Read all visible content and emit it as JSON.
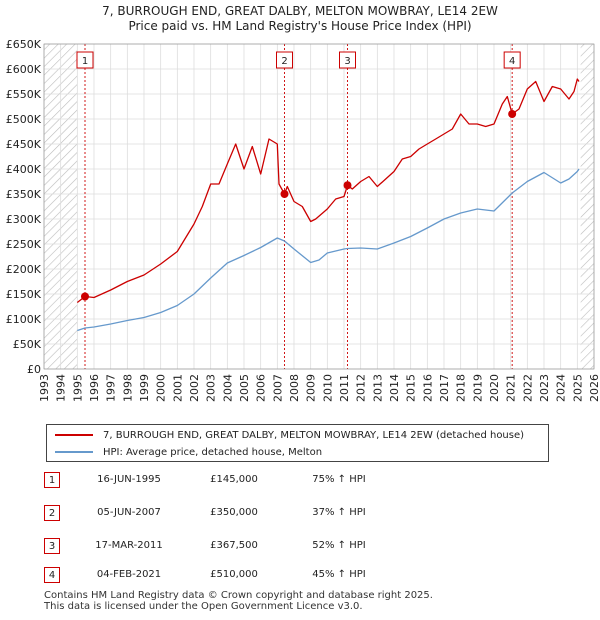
{
  "title_line1": "7, BURROUGH END, GREAT DALBY, MELTON MOWBRAY, LE14 2EW",
  "title_line2": "Price paid vs. HM Land Registry's House Price Index (HPI)",
  "colors": {
    "property": "#cc0000",
    "hpi": "#6699cc",
    "grid": "#dddddd",
    "hatch": "#bbbbbb",
    "marker": "#cc0000"
  },
  "legend": {
    "property_label": "7, BURROUGH END, GREAT DALBY, MELTON MOWBRAY, LE14 2EW (detached house)",
    "hpi_label": "HPI: Average price, detached house, Melton"
  },
  "sales": [
    {
      "num": "1",
      "date": "16-JUN-1995",
      "price": "£145,000",
      "hpi": "75% ↑ HPI"
    },
    {
      "num": "2",
      "date": "05-JUN-2007",
      "price": "£350,000",
      "hpi": "37% ↑ HPI"
    },
    {
      "num": "3",
      "date": "17-MAR-2011",
      "price": "£367,500",
      "hpi": "52% ↑ HPI"
    },
    {
      "num": "4",
      "date": "04-FEB-2021",
      "price": "£510,000",
      "hpi": "45% ↑ HPI"
    }
  ],
  "footer_line1": "Contains HM Land Registry data © Crown copyright and database right 2025.",
  "footer_line2": "This data is licensed under the Open Government Licence v3.0.",
  "chart_data": {
    "type": "line",
    "title": "7, BURROUGH END, GREAT DALBY, MELTON MOWBRAY, LE14 2EW — Price paid vs. HM Land Registry's House Price Index (HPI)",
    "xlabel": "",
    "ylabel": "",
    "xlim": [
      1993,
      2026
    ],
    "ylim": [
      0,
      650000
    ],
    "x_ticks": [
      1993,
      1994,
      1995,
      1996,
      1997,
      1998,
      1999,
      2000,
      2001,
      2002,
      2003,
      2004,
      2005,
      2006,
      2007,
      2008,
      2009,
      2010,
      2011,
      2012,
      2013,
      2014,
      2015,
      2016,
      2017,
      2018,
      2019,
      2020,
      2021,
      2022,
      2023,
      2024,
      2025,
      2026
    ],
    "y_ticks": [
      0,
      50000,
      100000,
      150000,
      200000,
      250000,
      300000,
      350000,
      400000,
      450000,
      500000,
      550000,
      600000,
      650000
    ],
    "y_tick_labels": [
      "£0",
      "£50K",
      "£100K",
      "£150K",
      "£200K",
      "£250K",
      "£300K",
      "£350K",
      "£400K",
      "£450K",
      "£500K",
      "£550K",
      "£600K",
      "£650K"
    ],
    "grid": true,
    "hatched_x_ranges": [
      [
        1993,
        1995.0
      ],
      [
        2025.2,
        2026
      ]
    ],
    "series": [
      {
        "name": "7, BURROUGH END, GREAT DALBY, MELTON MOWBRAY, LE14 2EW (detached house)",
        "x": [
          1995.0,
          1995.46,
          1996,
          1997,
          1998,
          1999,
          2000,
          2001,
          2002,
          2002.5,
          2003,
          2003.5,
          2004,
          2004.5,
          2005,
          2005.5,
          2006,
          2006.5,
          2007.0,
          2007.1,
          2007.43,
          2007.6,
          2008,
          2008.5,
          2009,
          2009.3,
          2010,
          2010.5,
          2011.0,
          2011.21,
          2011.5,
          2012,
          2012.5,
          2013,
          2013.5,
          2014,
          2014.5,
          2015,
          2015.5,
          2016,
          2016.5,
          2017,
          2017.5,
          2018,
          2018.5,
          2019,
          2019.5,
          2020,
          2020.5,
          2020.8,
          2021.09,
          2021.5,
          2022,
          2022.5,
          2023,
          2023.5,
          2024,
          2024.5,
          2024.8,
          2025.0,
          2025.1
        ],
        "values": [
          133000,
          145000,
          143000,
          158000,
          175000,
          188000,
          210000,
          235000,
          290000,
          325000,
          370000,
          370000,
          410000,
          450000,
          400000,
          445000,
          390000,
          460000,
          450000,
          370000,
          350000,
          365000,
          335000,
          325000,
          295000,
          300000,
          320000,
          340000,
          345000,
          367500,
          360000,
          375000,
          385000,
          365000,
          380000,
          395000,
          420000,
          425000,
          440000,
          450000,
          460000,
          470000,
          480000,
          510000,
          490000,
          490000,
          485000,
          490000,
          530000,
          545000,
          510000,
          520000,
          560000,
          575000,
          535000,
          565000,
          560000,
          540000,
          555000,
          580000,
          575000
        ]
      },
      {
        "name": "HPI: Average price, detached house, Melton",
        "x": [
          1995.0,
          1995.46,
          1996,
          1997,
          1998,
          1999,
          2000,
          2001,
          2002,
          2003,
          2004,
          2005,
          2006,
          2007,
          2007.43,
          2008,
          2009,
          2009.5,
          2010,
          2011,
          2011.21,
          2012,
          2013,
          2014,
          2015,
          2016,
          2017,
          2018,
          2019,
          2020,
          2021.09,
          2022,
          2023,
          2024,
          2024.5,
          2025.0,
          2025.1
        ],
        "values": [
          77000,
          82000,
          84000,
          90000,
          97000,
          103000,
          113000,
          127000,
          150000,
          182000,
          212000,
          227000,
          243000,
          262000,
          256000,
          240000,
          213000,
          218000,
          232000,
          240000,
          241000,
          242000,
          240000,
          252000,
          265000,
          282000,
          300000,
          312000,
          320000,
          316000,
          352000,
          375000,
          393000,
          372000,
          380000,
          395000,
          400000
        ]
      }
    ],
    "sale_points": [
      {
        "label": "1",
        "x": 1995.46,
        "y": 145000
      },
      {
        "label": "2",
        "x": 2007.43,
        "y": 350000
      },
      {
        "label": "3",
        "x": 2011.21,
        "y": 367500
      },
      {
        "label": "4",
        "x": 2021.09,
        "y": 510000
      }
    ]
  }
}
